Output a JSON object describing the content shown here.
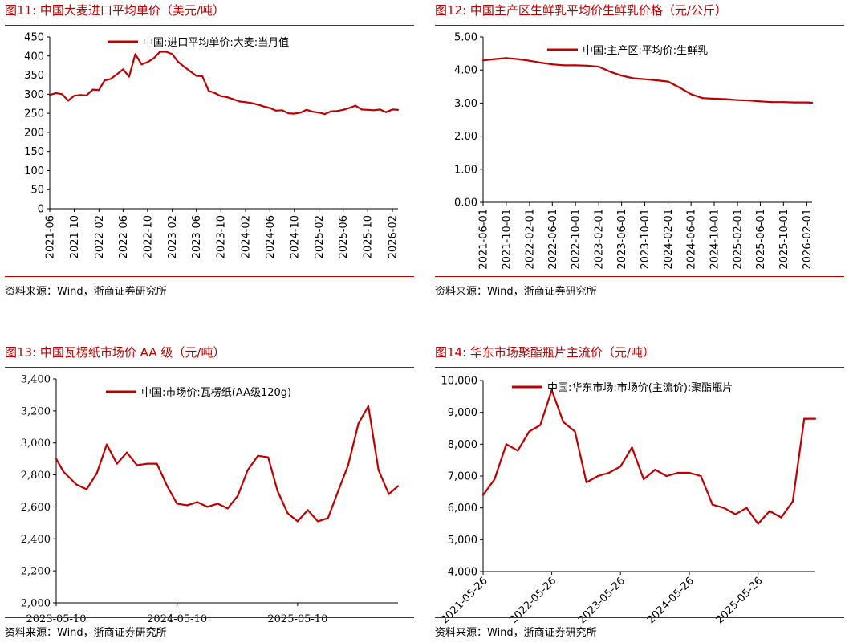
{
  "panels": [
    {
      "title": "图11:  中国大麦进口平均单价（美元/吨）",
      "source": "资料来源：Wind，浙商证券研究所"
    },
    {
      "title": "图12:  中国主产区生鲜乳平均价生鲜乳价格（元/公斤）",
      "source": "资料来源：Wind，浙商证券研究所"
    },
    {
      "title": "图13:  中国瓦楞纸市场价 AA 级（元/吨）",
      "source": "资料来源：Wind，浙商证券研究所"
    },
    {
      "title": "图14:  华东市场聚酯瓶片主流价（元/吨）",
      "source": "资料来源：Wind，浙商证券研究所"
    }
  ],
  "colors": {
    "accent": "#c00000",
    "line": "#c00000",
    "axis": "#000000"
  },
  "chart_data": [
    {
      "type": "line",
      "title": "图11:  中国大麦进口平均单价（美元/吨）",
      "series": [
        {
          "name": "中国:进口平均单价:大麦:当月值",
          "x": [
            "2021-06",
            "2021-07",
            "2021-08",
            "2021-09",
            "2021-10",
            "2021-11",
            "2021-12",
            "2022-01",
            "2022-02",
            "2022-03",
            "2022-04",
            "2022-05",
            "2022-06",
            "2022-07",
            "2022-08",
            "2022-09",
            "2022-10",
            "2022-11",
            "2022-12",
            "2023-01",
            "2023-02",
            "2023-03",
            "2023-04",
            "2023-05",
            "2023-06",
            "2023-07",
            "2023-08",
            "2023-09",
            "2023-10",
            "2023-11",
            "2023-12",
            "2024-01",
            "2024-02",
            "2024-03",
            "2024-04",
            "2024-05",
            "2024-06",
            "2024-07",
            "2024-08",
            "2024-09",
            "2024-10",
            "2024-11",
            "2024-12",
            "2025-01",
            "2025-02",
            "2025-03",
            "2025-04",
            "2025-05",
            "2025-06",
            "2025-07",
            "2025-08",
            "2025-09",
            "2025-10",
            "2025-11",
            "2025-12",
            "2026-01",
            "2026-02",
            "2026-03"
          ],
          "values": [
            298,
            303,
            300,
            283,
            296,
            298,
            297,
            312,
            311,
            336,
            340,
            352,
            365,
            346,
            405,
            378,
            384,
            394,
            411,
            411,
            405,
            385,
            372,
            360,
            348,
            347,
            309,
            303,
            295,
            292,
            287,
            281,
            279,
            277,
            273,
            268,
            264,
            257,
            258,
            250,
            249,
            252,
            259,
            254,
            252,
            248,
            255,
            256,
            259,
            264,
            270,
            260,
            259,
            258,
            260,
            253,
            260,
            259
          ]
        }
      ],
      "categories": [
        "2021-06",
        "2021-10",
        "2022-02",
        "2022-06",
        "2022-10",
        "2023-02",
        "2023-06",
        "2023-10",
        "2024-02",
        "2024-06",
        "2024-10",
        "2025-02",
        "2025-06",
        "2025-10",
        "2026-02"
      ],
      "ylim": [
        0,
        450
      ],
      "yticks": [
        "450",
        "400",
        "350",
        "300",
        "250",
        "200",
        "150",
        "100",
        "50",
        "0"
      ],
      "legend": "top-center",
      "grid": false
    },
    {
      "type": "line",
      "title": "图12:  中国主产区生鲜乳平均价生鲜乳价格（元/公斤）",
      "series": [
        {
          "name": "中国:主产区:平均价:生鲜乳",
          "x": [
            "2021-06",
            "2021-08",
            "2021-10",
            "2021-12",
            "2022-02",
            "2022-04",
            "2022-06",
            "2022-08",
            "2022-10",
            "2022-12",
            "2023-02",
            "2023-04",
            "2023-06",
            "2023-08",
            "2023-10",
            "2023-12",
            "2024-02",
            "2024-04",
            "2024-06",
            "2024-08",
            "2024-10",
            "2024-12",
            "2025-02",
            "2025-04",
            "2025-06",
            "2025-08",
            "2025-10",
            "2025-12",
            "2026-02",
            "2026-03"
          ],
          "values": [
            4.29,
            4.33,
            4.36,
            4.33,
            4.28,
            4.22,
            4.17,
            4.14,
            4.14,
            4.13,
            4.1,
            3.95,
            3.83,
            3.75,
            3.72,
            3.69,
            3.65,
            3.47,
            3.27,
            3.15,
            3.13,
            3.12,
            3.09,
            3.08,
            3.05,
            3.03,
            3.03,
            3.02,
            3.02,
            3.01
          ]
        }
      ],
      "categories": [
        "2021-06-01",
        "2021-10-01",
        "2022-02-01",
        "2022-06-01",
        "2022-10-01",
        "2023-02-01",
        "2023-06-01",
        "2023-10-01",
        "2024-02-01",
        "2024-06-01",
        "2024-10-01",
        "2025-02-01",
        "2025-06-01",
        "2025-10-01",
        "2026-02-01"
      ],
      "ylim": [
        0,
        5
      ],
      "yticks": [
        "5.00",
        "4.00",
        "3.00",
        "2.00",
        "1.00",
        "0.00"
      ],
      "legend": "top-center",
      "grid": false
    },
    {
      "type": "line",
      "title": "图13:  中国瓦楞纸市场价 AA 级（元/吨）",
      "series": [
        {
          "name": "中国:市场价:瓦楞纸(AA级120g)",
          "x": [
            "2023-05-10",
            "2023-06-01",
            "2023-07-10",
            "2023-08-10",
            "2023-09-10",
            "2023-10-10",
            "2023-11-10",
            "2023-12-10",
            "2024-01-10",
            "2024-02-10",
            "2024-03-10",
            "2024-04-10",
            "2024-05-10",
            "2024-06-10",
            "2024-07-10",
            "2024-08-10",
            "2024-09-10",
            "2024-10-10",
            "2024-11-10",
            "2024-12-10",
            "2025-01-10",
            "2025-02-10",
            "2025-03-10",
            "2025-04-10",
            "2025-05-10",
            "2025-06-10",
            "2025-07-10",
            "2025-08-10",
            "2025-09-10",
            "2025-10-10",
            "2025-11-10",
            "2025-12-10",
            "2026-01-10",
            "2026-02-10",
            "2026-03-10"
          ],
          "values": [
            2900,
            2820,
            2740,
            2710,
            2810,
            2990,
            2870,
            2940,
            2860,
            2870,
            2870,
            2730,
            2620,
            2610,
            2630,
            2600,
            2620,
            2590,
            2670,
            2830,
            2920,
            2910,
            2700,
            2560,
            2510,
            2580,
            2510,
            2530,
            2700,
            2860,
            3120,
            3230,
            2830,
            2680,
            2730
          ]
        }
      ],
      "categories": [
        "2023-05-10",
        "2024-05-10",
        "2025-05-10"
      ],
      "ylim": [
        2000,
        3400
      ],
      "yticks": [
        "3,400",
        "3,200",
        "3,000",
        "2,800",
        "2,600",
        "2,400",
        "2,200",
        "2,000"
      ],
      "legend": "top-center",
      "grid": false
    },
    {
      "type": "line",
      "title": "图14:  华东市场聚酯瓶片主流价（元/吨）",
      "series": [
        {
          "name": "中国:华东市场:市场价(主流价):聚酯瓶片",
          "x": [
            "2021-05-26",
            "2021-07-26",
            "2021-09-26",
            "2021-11-26",
            "2022-01-26",
            "2022-03-26",
            "2022-05-26",
            "2022-07-26",
            "2022-09-26",
            "2022-11-26",
            "2023-01-26",
            "2023-03-26",
            "2023-05-26",
            "2023-07-26",
            "2023-09-26",
            "2023-11-26",
            "2024-01-26",
            "2024-03-26",
            "2024-05-26",
            "2024-07-26",
            "2024-09-26",
            "2024-11-26",
            "2025-01-26",
            "2025-03-26",
            "2025-05-26",
            "2025-07-26",
            "2025-09-26",
            "2025-11-26",
            "2026-01-26",
            "2026-03-26"
          ],
          "values": [
            6400,
            6900,
            8000,
            7800,
            8400,
            8600,
            9700,
            8700,
            8400,
            6800,
            7000,
            7100,
            7300,
            7900,
            6900,
            7200,
            7000,
            7100,
            7100,
            7000,
            6100,
            6000,
            5800,
            6000,
            5500,
            5900,
            5700,
            6200,
            8800,
            8800
          ]
        }
      ],
      "categories": [
        "2021-05-26",
        "2022-05-26",
        "2023-05-26",
        "2024-05-26",
        "2025-05-26"
      ],
      "ylim": [
        4000,
        10000
      ],
      "yticks": [
        "10,000",
        "9,000",
        "8,000",
        "7,000",
        "6,000",
        "5,000",
        "4,000"
      ],
      "legend": "top-center",
      "grid": false
    }
  ]
}
